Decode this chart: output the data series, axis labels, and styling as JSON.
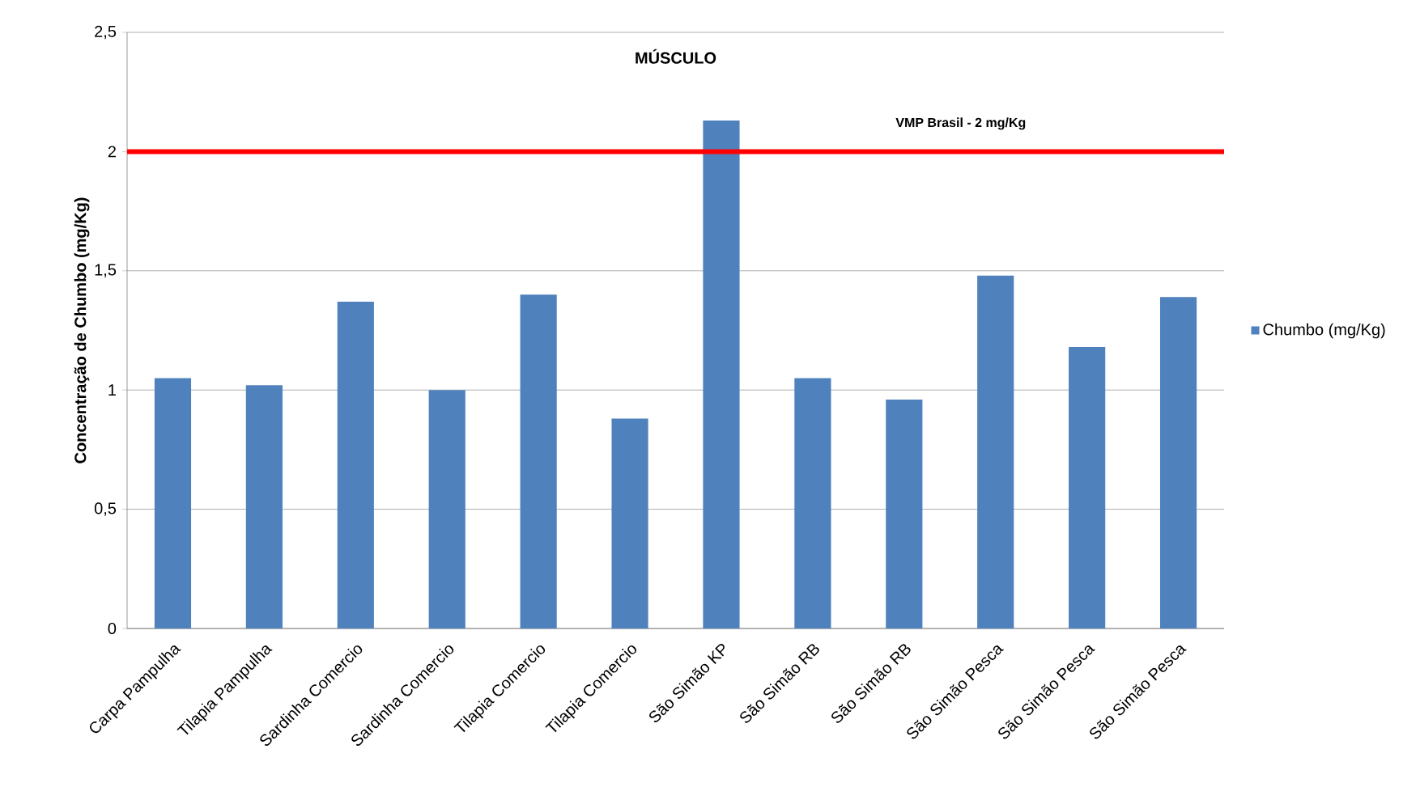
{
  "chart_data": {
    "type": "bar",
    "title": "MÚSCULO",
    "ylabel": "Concentração de Chumbo (mg/Kg)",
    "categories": [
      "Carpa Pampulha",
      "Tilapia Pampulha",
      "Sardinha Comercio",
      "Sardinha Comercio",
      "Tilapia Comercio",
      "Tilapia Comercio",
      "São Simão KP",
      "São Simão RB",
      "São Simão RB",
      "São Simão Pesca",
      "São Simão Pesca",
      "São Simão Pesca"
    ],
    "series": [
      {
        "name": "Chumbo (mg/Kg)",
        "color": "#4f81bd",
        "values": [
          1.05,
          1.02,
          1.37,
          1.0,
          1.4,
          0.88,
          2.13,
          1.05,
          0.96,
          1.48,
          1.18,
          1.39
        ]
      }
    ],
    "ylim": [
      0,
      2.5
    ],
    "yticks": [
      0,
      {
        "value": 0.5,
        "label": "0,5"
      },
      1,
      {
        "value": 1.5,
        "label": "1,5"
      },
      2,
      {
        "value": 2.5,
        "label": "2,5"
      }
    ],
    "ref_lines": [
      {
        "axis": "y",
        "value": 2,
        "label": "VMP Brasil - 2 mg/Kg",
        "color": "#ff0000"
      }
    ],
    "grid": "y",
    "legend": "right"
  }
}
